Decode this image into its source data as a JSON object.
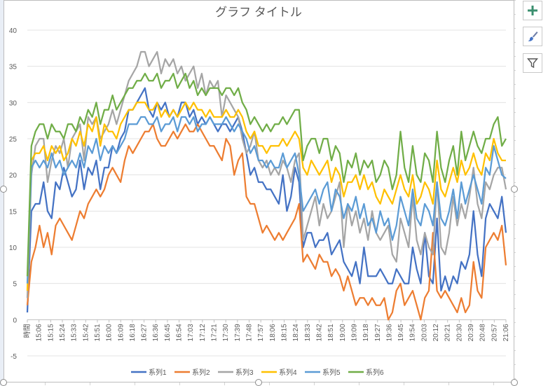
{
  "chart_data": {
    "type": "line",
    "title": "グラフ タイトル",
    "xlabel": "",
    "ylabel": "",
    "ylim": [
      -5,
      40
    ],
    "yticks": [
      -5,
      0,
      5,
      10,
      15,
      20,
      25,
      30,
      35,
      40
    ],
    "grid": true,
    "legend_position": "bottom",
    "x_tick_labels": [
      "時間",
      "15:06",
      "15:15",
      "15:24",
      "15:33",
      "15:42",
      "15:51",
      "16:00",
      "16:09",
      "16:18",
      "16:27",
      "16:36",
      "16:45",
      "16:54",
      "17:03",
      "17:12",
      "17:21",
      "17:30",
      "17:39",
      "17:48",
      "17:57",
      "18:06",
      "18:15",
      "18:24",
      "18:33",
      "18:42",
      "18:51",
      "19:00",
      "19:09",
      "19:18",
      "19:27",
      "19:36",
      "19:45",
      "19:54",
      "20:03",
      "20:12",
      "20:21",
      "20:30",
      "20:39",
      "20:48",
      "20:57",
      "21:06"
    ],
    "series": [
      {
        "name": "系列1",
        "color": "#4472c4",
        "values": [
          1.0,
          15.0,
          16.0,
          16.0,
          19.0,
          15.0,
          14.0,
          19.0,
          18.0,
          21.0,
          19.0,
          17.0,
          18.0,
          22.0,
          18.0,
          21.0,
          20.0,
          22.0,
          18.0,
          21.0,
          21.0,
          24.0,
          23.0,
          25.0,
          26.0,
          29.0,
          29.0,
          30.0,
          31.0,
          32.0,
          29.0,
          28.0,
          30.0,
          29.0,
          30.0,
          28.0,
          29.0,
          28.0,
          30.0,
          30.0,
          28.0,
          29.0,
          27.0,
          28.0,
          27.0,
          28.0,
          27.0,
          26.0,
          27.0,
          27.0,
          26.0,
          27.0,
          28.0,
          26.0,
          23.0,
          20.0,
          21.0,
          19.0,
          19.0,
          18.0,
          18.0,
          17.0,
          16.0,
          20.0,
          15.0,
          17.0,
          21.0,
          19.0,
          10.0,
          12.0,
          12.0,
          10.0,
          11.0,
          11.0,
          12.0,
          9.0,
          10.0,
          11.0,
          8.0,
          7.0,
          6.0,
          8.0,
          5.0,
          10.0,
          6.0,
          6.0,
          6.0,
          7.0,
          6.0,
          5.0,
          5.0,
          7.0,
          6.0,
          5.0,
          5.0,
          10.0,
          7.0,
          5.0,
          12.0,
          6.0,
          5.0,
          14.0,
          4.0,
          6.0,
          4.0,
          6.0,
          5.0,
          8.0,
          7.0,
          9.0,
          15.0,
          9.0,
          6.0,
          14.0,
          16.0,
          15.0,
          14.0,
          17.0,
          12.0
        ]
      },
      {
        "name": "系列2",
        "color": "#ed7d31",
        "values": [
          2.0,
          8.0,
          10.0,
          13.0,
          10.0,
          12.0,
          9.0,
          13.0,
          14.0,
          13.0,
          12.0,
          11.0,
          13.0,
          15.0,
          14.0,
          16.0,
          17.0,
          18.0,
          17.0,
          18.0,
          20.0,
          21.0,
          20.0,
          19.0,
          22.0,
          24.0,
          23.0,
          24.0,
          25.0,
          26.0,
          26.0,
          27.0,
          25.0,
          24.0,
          24.0,
          25.0,
          26.0,
          25.0,
          26.0,
          27.0,
          26.0,
          26.0,
          27.0,
          26.0,
          25.0,
          24.0,
          24.0,
          23.0,
          22.0,
          25.0,
          24.0,
          20.0,
          22.0,
          23.0,
          17.0,
          16.0,
          16.0,
          14.0,
          12.0,
          13.0,
          12.0,
          11.0,
          12.0,
          11.0,
          12.0,
          13.0,
          14.0,
          16.0,
          8.0,
          9.0,
          8.0,
          7.0,
          9.0,
          8.0,
          8.0,
          6.0,
          7.0,
          6.0,
          4.0,
          6.0,
          4.0,
          2.0,
          3.0,
          3.0,
          2.0,
          3.0,
          2.0,
          2.0,
          3.0,
          0.0,
          1.0,
          4.0,
          5.0,
          2.0,
          3.0,
          4.0,
          2.0,
          0.0,
          3.0,
          4.0,
          12.0,
          4.0,
          3.0,
          4.0,
          3.0,
          2.0,
          1.0,
          3.0,
          1.0,
          2.0,
          8.0,
          4.0,
          3.0,
          10.0,
          11.0,
          12.0,
          11.0,
          13.0,
          7.5
        ]
      },
      {
        "name": "系列3",
        "color": "#a5a5a5",
        "values": [
          3.0,
          20.0,
          24.0,
          25.0,
          25.0,
          19.0,
          22.0,
          24.0,
          23.0,
          25.0,
          21.0,
          25.0,
          26.0,
          27.0,
          22.0,
          28.0,
          27.0,
          28.0,
          25.0,
          26.0,
          27.0,
          29.0,
          27.0,
          29.0,
          31.0,
          33.0,
          34.0,
          35.0,
          37.0,
          37.0,
          35.0,
          36.0,
          37.0,
          34.0,
          36.0,
          35.0,
          36.0,
          34.0,
          35.0,
          33.0,
          34.0,
          35.0,
          32.0,
          34.0,
          31.0,
          33.0,
          32.0,
          33.0,
          28.0,
          31.0,
          30.0,
          29.0,
          28.0,
          25.0,
          23.0,
          24.0,
          26.0,
          22.0,
          21.0,
          22.0,
          20.0,
          21.0,
          20.0,
          22.0,
          21.0,
          19.0,
          22.0,
          23.0,
          11.0,
          13.0,
          15.0,
          17.0,
          13.0,
          16.0,
          14.0,
          15.0,
          17.0,
          19.0,
          10.0,
          16.0,
          13.0,
          15.0,
          12.0,
          14.0,
          11.0,
          15.0,
          12.0,
          11.0,
          12.0,
          13.0,
          9.0,
          8.0,
          14.0,
          12.0,
          10.0,
          17.0,
          11.0,
          9.0,
          12.0,
          10.0,
          9.0,
          19.0,
          10.0,
          9.0,
          12.0,
          17.0,
          13.0,
          16.0,
          14.0,
          17.0,
          21.0,
          16.0,
          14.0,
          19.0,
          18.0,
          20.0,
          21.0,
          21.0,
          18.0
        ]
      },
      {
        "name": "系列4",
        "color": "#ffc000",
        "values": [
          4.0,
          22.0,
          23.0,
          23.0,
          24.0,
          22.0,
          24.0,
          23.0,
          24.0,
          22.0,
          23.0,
          25.0,
          24.0,
          26.0,
          24.0,
          27.0,
          26.0,
          28.0,
          24.0,
          27.0,
          26.0,
          26.0,
          25.0,
          27.0,
          28.0,
          29.0,
          29.0,
          30.0,
          30.0,
          30.0,
          29.0,
          29.0,
          30.0,
          28.0,
          29.0,
          28.0,
          29.0,
          28.0,
          29.0,
          30.0,
          29.0,
          30.0,
          29.0,
          29.0,
          28.0,
          29.0,
          28.0,
          28.0,
          28.0,
          29.0,
          28.0,
          28.0,
          29.0,
          28.0,
          26.0,
          25.0,
          26.0,
          24.0,
          24.0,
          23.0,
          24.0,
          24.0,
          24.0,
          25.0,
          24.0,
          25.0,
          26.0,
          25.0,
          21.0,
          20.0,
          22.0,
          21.0,
          20.0,
          21.0,
          22.0,
          19.0,
          21.0,
          20.0,
          17.0,
          19.0,
          19.0,
          20.0,
          18.0,
          20.0,
          18.0,
          19.0,
          17.0,
          16.0,
          18.0,
          17.0,
          16.0,
          18.0,
          20.0,
          18.0,
          17.0,
          20.0,
          16.0,
          17.0,
          19.0,
          18.0,
          16.0,
          22.0,
          18.0,
          17.0,
          19.0,
          21.0,
          19.0,
          22.0,
          20.0,
          21.0,
          23.0,
          21.0,
          20.0,
          23.0,
          22.0,
          25.0,
          23.0,
          22.0,
          22.0
        ]
      },
      {
        "name": "系列5",
        "color": "#5b9bd5",
        "values": [
          5.0,
          21.0,
          22.0,
          21.0,
          22.0,
          21.0,
          23.0,
          21.0,
          22.0,
          20.0,
          21.0,
          22.0,
          21.0,
          23.0,
          21.0,
          24.0,
          23.0,
          25.0,
          22.0,
          24.0,
          23.0,
          24.0,
          23.0,
          24.0,
          25.0,
          27.0,
          27.0,
          27.0,
          28.0,
          28.0,
          27.0,
          27.0,
          28.0,
          26.0,
          27.0,
          27.0,
          28.0,
          26.0,
          28.0,
          28.0,
          27.0,
          28.0,
          26.0,
          27.0,
          27.0,
          28.0,
          27.0,
          27.0,
          27.0,
          28.0,
          27.0,
          26.0,
          27.0,
          26.0,
          25.0,
          23.0,
          24.0,
          22.0,
          22.0,
          21.0,
          22.0,
          21.0,
          21.0,
          23.0,
          21.0,
          22.0,
          23.0,
          20.0,
          15.0,
          16.0,
          17.0,
          18.0,
          16.0,
          18.0,
          19.0,
          15.0,
          18.0,
          17.0,
          14.0,
          16.0,
          15.0,
          17.0,
          14.0,
          16.0,
          13.0,
          14.0,
          12.0,
          15.0,
          13.0,
          14.0,
          11.0,
          13.0,
          17.0,
          15.0,
          13.0,
          18.0,
          14.0,
          13.0,
          16.0,
          15.0,
          13.0,
          19.0,
          14.0,
          13.0,
          15.0,
          18.0,
          14.0,
          19.0,
          16.0,
          18.0,
          20.0,
          18.0,
          16.0,
          21.0,
          20.0,
          24.0,
          22.0,
          20.0,
          19.5
        ]
      },
      {
        "name": "系列6",
        "color": "#70ad47",
        "values": [
          6.0,
          24.0,
          26.0,
          27.0,
          27.0,
          25.0,
          27.0,
          26.0,
          26.0,
          25.0,
          27.0,
          27.0,
          26.0,
          28.0,
          27.0,
          29.0,
          28.0,
          30.0,
          27.0,
          29.0,
          29.0,
          31.0,
          29.0,
          30.0,
          31.0,
          32.0,
          32.0,
          33.0,
          33.0,
          34.0,
          33.0,
          33.0,
          34.0,
          32.0,
          33.0,
          33.0,
          34.0,
          32.0,
          33.0,
          34.0,
          32.0,
          33.0,
          31.0,
          32.0,
          31.0,
          32.0,
          32.0,
          32.0,
          31.0,
          32.0,
          32.0,
          31.0,
          32.0,
          30.0,
          29.0,
          27.0,
          28.0,
          27.0,
          26.0,
          27.0,
          26.0,
          27.0,
          27.0,
          28.0,
          27.0,
          28.0,
          29.0,
          29.0,
          22.0,
          24.0,
          25.0,
          25.0,
          23.0,
          25.0,
          25.0,
          22.0,
          24.0,
          23.0,
          19.0,
          22.0,
          21.0,
          23.0,
          20.0,
          22.0,
          21.0,
          22.0,
          19.0,
          20.0,
          22.0,
          21.0,
          18.0,
          20.0,
          26.0,
          21.0,
          19.0,
          24.0,
          20.0,
          19.0,
          23.0,
          22.0,
          19.0,
          26.0,
          21.0,
          19.0,
          22.0,
          24.0,
          20.0,
          26.0,
          22.0,
          24.0,
          26.0,
          24.0,
          23.0,
          25.0,
          25.0,
          27.0,
          28.0,
          24.0,
          25.0
        ]
      }
    ]
  },
  "ui": {
    "add_element_icon": "plus-icon",
    "chart_style_icon": "brush-icon",
    "chart_filter_icon": "filter-icon"
  }
}
